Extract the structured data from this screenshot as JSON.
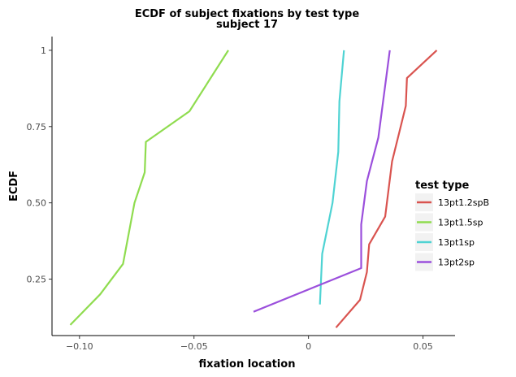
{
  "chart_data": {
    "type": "line",
    "title": "ECDF of subject fixations by test type",
    "subtitle": "subject 17",
    "xlabel": "fixation location",
    "ylabel": "ECDF",
    "xlim": [
      -0.112,
      0.064
    ],
    "ylim": [
      0.065,
      1.045
    ],
    "x_ticks": [
      -0.1,
      -0.05,
      0,
      0.05
    ],
    "x_tick_labels": [
      "−0.10",
      "−0.05",
      "0",
      "0.05"
    ],
    "y_ticks": [
      0.25,
      0.5,
      0.75,
      1
    ],
    "y_tick_labels": [
      "0.25",
      "0.50",
      "0.75",
      "1"
    ],
    "grid": false,
    "legend": {
      "title": "test type",
      "placement": "right"
    },
    "series": [
      {
        "name": "13pt1.2spB",
        "color": "#d9534f",
        "points": [
          [
            0.012,
            0.091
          ],
          [
            0.0225,
            0.182
          ],
          [
            0.0255,
            0.273
          ],
          [
            0.0265,
            0.364
          ],
          [
            0.0335,
            0.455
          ],
          [
            0.0365,
            0.636
          ],
          [
            0.0395,
            0.727
          ],
          [
            0.0425,
            0.818
          ],
          [
            0.043,
            0.909
          ],
          [
            0.056,
            1.0
          ]
        ]
      },
      {
        "name": "13pt1.5sp",
        "color": "#8fdc4f",
        "points": [
          [
            -0.104,
            0.1
          ],
          [
            -0.091,
            0.2
          ],
          [
            -0.081,
            0.3
          ],
          [
            -0.076,
            0.5
          ],
          [
            -0.0715,
            0.6
          ],
          [
            -0.071,
            0.7
          ],
          [
            -0.052,
            0.8
          ],
          [
            -0.035,
            1.0
          ]
        ]
      },
      {
        "name": "13pt1sp",
        "color": "#4fd3d3",
        "points": [
          [
            0.005,
            0.167
          ],
          [
            0.006,
            0.333
          ],
          [
            0.0105,
            0.5
          ],
          [
            0.013,
            0.667
          ],
          [
            0.0135,
            0.833
          ],
          [
            0.0155,
            1.0
          ]
        ]
      },
      {
        "name": "13pt2sp",
        "color": "#9b4fdc",
        "points": [
          [
            -0.024,
            0.143
          ],
          [
            0.023,
            0.286
          ],
          [
            0.023,
            0.429
          ],
          [
            0.0255,
            0.571
          ],
          [
            0.0305,
            0.714
          ],
          [
            0.0355,
            1.0
          ]
        ]
      }
    ]
  }
}
